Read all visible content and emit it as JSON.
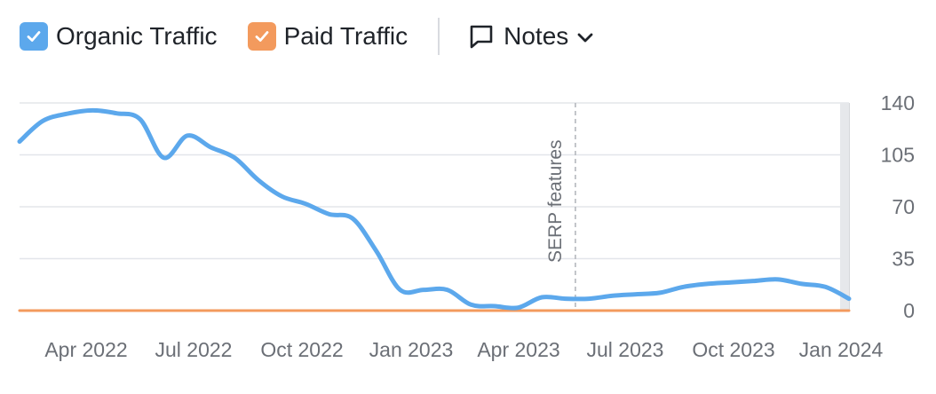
{
  "legend": {
    "organic": {
      "label": "Organic Traffic",
      "color": "#5ca8ec",
      "checked": true,
      "icon": "check-icon"
    },
    "paid": {
      "label": "Paid Traffic",
      "color": "#f39a5d",
      "checked": true,
      "icon": "check-icon"
    },
    "notes": {
      "label": "Notes",
      "icon": "comment-icon",
      "dropdown_icon": "chevron-down-icon"
    }
  },
  "chart_data": {
    "type": "line",
    "x_ticks": [
      "Apr 2022",
      "Jul 2022",
      "Oct 2022",
      "Jan 2023",
      "Apr 2023",
      "Jul 2023",
      "Oct 2023",
      "Jan 2024"
    ],
    "ylim": [
      0,
      140
    ],
    "y_ticks": [
      0,
      35,
      70,
      105,
      140
    ],
    "grid": true,
    "y_axis_side": "right",
    "annotation": {
      "label": "SERP features",
      "x": "2023-03-24"
    },
    "series": [
      {
        "name": "Organic Traffic",
        "color": "#5ca8ec",
        "points": [
          [
            "2022-01-01",
            114
          ],
          [
            "2022-01-20",
            128
          ],
          [
            "2022-02-10",
            133
          ],
          [
            "2022-03-01",
            135
          ],
          [
            "2022-03-20",
            133
          ],
          [
            "2022-04-08",
            129
          ],
          [
            "2022-04-27",
            103
          ],
          [
            "2022-05-16",
            118
          ],
          [
            "2022-06-04",
            110
          ],
          [
            "2022-06-23",
            103
          ],
          [
            "2022-07-12",
            88
          ],
          [
            "2022-07-31",
            77
          ],
          [
            "2022-08-19",
            72
          ],
          [
            "2022-09-07",
            65
          ],
          [
            "2022-09-26",
            62
          ],
          [
            "2022-10-15",
            40
          ],
          [
            "2022-11-03",
            14
          ],
          [
            "2022-11-22",
            14
          ],
          [
            "2022-12-11",
            14
          ],
          [
            "2022-12-30",
            4
          ],
          [
            "2023-01-18",
            3
          ],
          [
            "2023-02-06",
            2
          ],
          [
            "2023-02-25",
            9
          ],
          [
            "2023-03-16",
            8
          ],
          [
            "2023-04-04",
            8
          ],
          [
            "2023-04-23",
            10
          ],
          [
            "2023-05-12",
            11
          ],
          [
            "2023-05-31",
            12
          ],
          [
            "2023-06-19",
            16
          ],
          [
            "2023-07-08",
            18
          ],
          [
            "2023-07-27",
            19
          ],
          [
            "2023-08-15",
            20
          ],
          [
            "2023-09-03",
            21
          ],
          [
            "2023-09-22",
            18
          ],
          [
            "2023-10-11",
            16
          ],
          [
            "2023-10-30",
            8
          ]
        ]
      },
      {
        "name": "Paid Traffic",
        "color": "#f39a5d",
        "points": [
          [
            "2022-01-01",
            0
          ],
          [
            "2023-10-30",
            0
          ]
        ]
      }
    ]
  }
}
